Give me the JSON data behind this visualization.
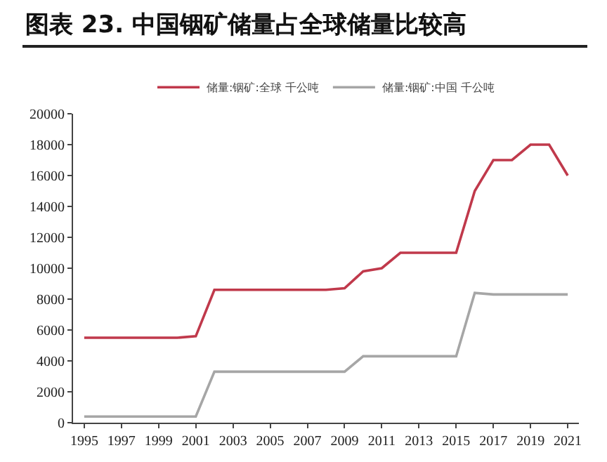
{
  "chart_data": {
    "type": "line",
    "title": "图表 23. 中国铟矿储量占全球储量比较高",
    "x": [
      1995,
      1996,
      1997,
      1998,
      1999,
      2000,
      2001,
      2002,
      2003,
      2004,
      2005,
      2006,
      2007,
      2008,
      2009,
      2010,
      2011,
      2012,
      2013,
      2014,
      2015,
      2016,
      2017,
      2018,
      2019,
      2020,
      2021
    ],
    "series": [
      {
        "name": "储量:铟矿:全球 千公吨",
        "color": "#c0394b",
        "values": [
          5500,
          5500,
          5500,
          5500,
          5500,
          5500,
          5600,
          8600,
          8600,
          8600,
          8600,
          8600,
          8600,
          8600,
          8700,
          9800,
          10000,
          11000,
          11000,
          11000,
          11000,
          15000,
          17000,
          17000,
          18000,
          18000,
          16000
        ]
      },
      {
        "name": "储量:铟矿:中国 千公吨",
        "color": "#a6a6a6",
        "values": [
          400,
          400,
          400,
          400,
          400,
          400,
          400,
          3300,
          3300,
          3300,
          3300,
          3300,
          3300,
          3300,
          3300,
          4300,
          4300,
          4300,
          4300,
          4300,
          4300,
          8400,
          8300,
          8300,
          8300,
          8300,
          8300
        ]
      }
    ],
    "xlim": [
      1994.4,
      2021.6
    ],
    "xticks": [
      1995,
      1997,
      1999,
      2001,
      2003,
      2005,
      2007,
      2009,
      2011,
      2013,
      2015,
      2017,
      2019,
      2021
    ],
    "ylim": [
      0,
      20000
    ],
    "yticks": [
      0,
      2000,
      4000,
      6000,
      8000,
      10000,
      12000,
      14000,
      16000,
      18000,
      20000
    ],
    "grid": false,
    "legend": "top",
    "marker": "none",
    "line_style": "solid"
  }
}
